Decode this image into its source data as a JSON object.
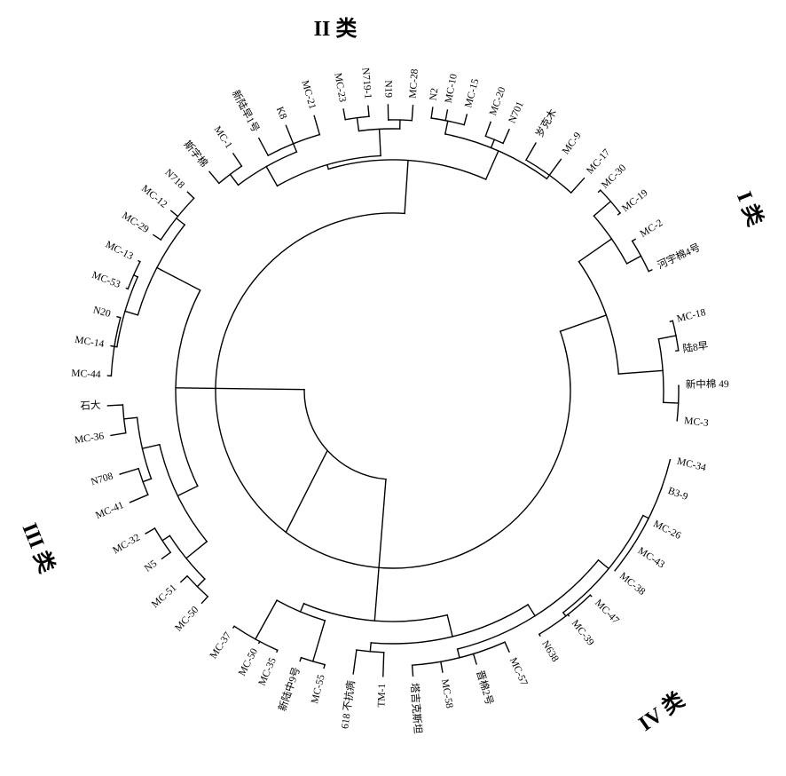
{
  "groups": [
    {
      "id": "g1",
      "label": "I 类"
    },
    {
      "id": "g2",
      "label": "II 类"
    },
    {
      "id": "g3",
      "label": "III 类"
    },
    {
      "id": "g4",
      "label": "IV 类"
    }
  ],
  "leaves": [
    {
      "label": "MC-30"
    },
    {
      "label": "MC-19"
    },
    {
      "label": "MC-2"
    },
    {
      "label": "河宇棉4号"
    },
    {
      "label": "MC-18"
    },
    {
      "label": "陆8早"
    },
    {
      "label": "新中棉 49"
    },
    {
      "label": "MC-3"
    },
    {
      "label": "MC-34"
    },
    {
      "label": "B3-9"
    },
    {
      "label": "MC-26"
    },
    {
      "label": "MC-43"
    },
    {
      "label": "MC-38"
    },
    {
      "label": "MC-47"
    },
    {
      "label": "MC-39"
    },
    {
      "label": "N638"
    },
    {
      "label": "MC-57"
    },
    {
      "label": "晋棉2号"
    },
    {
      "label": "MC-58"
    },
    {
      "label": "塔吉克斯坦"
    },
    {
      "label": "TM-1"
    },
    {
      "label": "618 不抗病"
    },
    {
      "label": "MC-55"
    },
    {
      "label": "新陆中9号"
    },
    {
      "label": "MC-35"
    },
    {
      "label": "MC-50"
    },
    {
      "label": "MC-37"
    },
    {
      "label": "MC-50"
    },
    {
      "label": "MC-51"
    },
    {
      "label": "N5"
    },
    {
      "label": "MC-32"
    },
    {
      "label": "MC-41"
    },
    {
      "label": "N708"
    },
    {
      "label": "MC-36"
    },
    {
      "label": "石大"
    },
    {
      "label": "MC-44"
    },
    {
      "label": "MC-14"
    },
    {
      "label": "N20"
    },
    {
      "label": "MC-53"
    },
    {
      "label": "MC-13"
    },
    {
      "label": "MC-29"
    },
    {
      "label": "MC-12"
    },
    {
      "label": "N718"
    },
    {
      "label": "斯字棉"
    },
    {
      "label": "MC-1"
    },
    {
      "label": "新陆早1号"
    },
    {
      "label": "K8"
    },
    {
      "label": "MC-21"
    },
    {
      "label": "MC-23"
    },
    {
      "label": "N719-1"
    },
    {
      "label": "N19"
    },
    {
      "label": "MC-28"
    },
    {
      "label": "N2"
    },
    {
      "label": "MC-10"
    },
    {
      "label": "MC-15"
    },
    {
      "label": "MC-20"
    },
    {
      "label": "N701"
    },
    {
      "label": "岁克木"
    },
    {
      "label": "MC-9"
    },
    {
      "label": "MC-17"
    }
  ]
}
